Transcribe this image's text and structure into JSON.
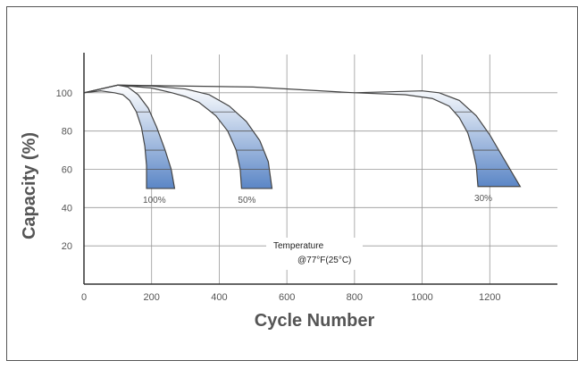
{
  "chart_data": {
    "type": "line",
    "xlabel": "Cycle Number",
    "ylabel": "Capacity   (%)",
    "xlim": [
      0,
      1400
    ],
    "ylim": [
      0,
      120
    ],
    "x_ticks": [
      0,
      200,
      400,
      600,
      800,
      1000,
      1200
    ],
    "y_ticks": [
      20,
      40,
      60,
      80,
      100
    ],
    "grid": true,
    "series": [
      {
        "name": "100%",
        "color": "#5b86c6",
        "upper": [
          [
            0,
            100
          ],
          [
            50,
            102
          ],
          [
            100,
            104
          ],
          [
            130,
            103
          ],
          [
            160,
            99
          ],
          [
            190,
            92
          ],
          [
            215,
            82
          ],
          [
            240,
            70
          ],
          [
            258,
            60
          ],
          [
            268,
            50
          ]
        ],
        "lower": [
          [
            0,
            100
          ],
          [
            50,
            101
          ],
          [
            90,
            100
          ],
          [
            115,
            99
          ],
          [
            135,
            96
          ],
          [
            155,
            90
          ],
          [
            170,
            82
          ],
          [
            180,
            72
          ],
          [
            185,
            62
          ],
          [
            185,
            50
          ]
        ]
      },
      {
        "name": "50%",
        "color": "#5b86c6",
        "upper": [
          [
            0,
            100
          ],
          [
            100,
            104
          ],
          [
            200,
            103.5
          ],
          [
            300,
            102
          ],
          [
            370,
            99
          ],
          [
            430,
            93
          ],
          [
            480,
            85
          ],
          [
            520,
            75
          ],
          [
            545,
            64
          ],
          [
            556,
            50
          ]
        ],
        "lower": [
          [
            0,
            100
          ],
          [
            100,
            104
          ],
          [
            200,
            102.5
          ],
          [
            260,
            100
          ],
          [
            300,
            98
          ],
          [
            340,
            95
          ],
          [
            390,
            88
          ],
          [
            425,
            80
          ],
          [
            450,
            70
          ],
          [
            462,
            60
          ],
          [
            466,
            50
          ]
        ]
      },
      {
        "name": "30%",
        "color": "#5b86c6",
        "upper": [
          [
            0,
            100
          ],
          [
            100,
            104
          ],
          [
            500,
            103
          ],
          [
            800,
            100
          ],
          [
            1000,
            101
          ],
          [
            1050,
            100
          ],
          [
            1110,
            96
          ],
          [
            1160,
            88
          ],
          [
            1200,
            78
          ],
          [
            1240,
            66
          ],
          [
            1270,
            57
          ],
          [
            1290,
            51
          ]
        ],
        "lower": [
          [
            0,
            100
          ],
          [
            100,
            104
          ],
          [
            500,
            103
          ],
          [
            800,
            100
          ],
          [
            950,
            99
          ],
          [
            1030,
            97
          ],
          [
            1080,
            93
          ],
          [
            1110,
            87
          ],
          [
            1135,
            79
          ],
          [
            1150,
            70
          ],
          [
            1160,
            62
          ],
          [
            1165,
            51
          ]
        ]
      }
    ],
    "annotations": {
      "temperature_line1": "Temperature",
      "temperature_line2": "@77°F(25°C)"
    }
  }
}
